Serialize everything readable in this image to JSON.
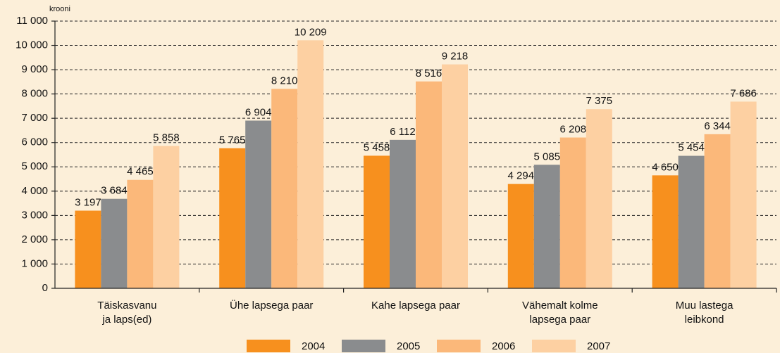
{
  "chart_data": {
    "type": "bar",
    "y_label": "krooni",
    "categories": [
      [
        "Täiskasvanu",
        "ja laps(ed)"
      ],
      [
        "Ühe lapsega paar"
      ],
      [
        "Kahe lapsega paar"
      ],
      [
        "Vähemalt kolme",
        "lapsega paar"
      ],
      [
        "Muu lastega",
        "leibkond"
      ]
    ],
    "series": [
      {
        "name": "2004",
        "color": "#f7901e",
        "values": [
          3197,
          5765,
          5458,
          4294,
          4650
        ],
        "value_labels": [
          "3 197",
          "5 765",
          "5 458",
          "4 294",
          "4 650"
        ]
      },
      {
        "name": "2005",
        "color": "#8a8c8e",
        "values": [
          3684,
          6904,
          6112,
          5085,
          5454
        ],
        "value_labels": [
          "3 684",
          "6 904",
          "6 112",
          "5 085",
          "5 454"
        ]
      },
      {
        "name": "2006",
        "color": "#fbb87a",
        "values": [
          4465,
          8210,
          8516,
          6208,
          6344
        ],
        "value_labels": [
          "4 465",
          "8 210",
          "8 516",
          "6 208",
          "6 344"
        ]
      },
      {
        "name": "2007",
        "color": "#fdd0a2",
        "values": [
          5858,
          10209,
          9218,
          7375,
          7686
        ],
        "value_labels": [
          "5 858",
          "10 209",
          "9 218",
          "7 375",
          "7 686"
        ]
      }
    ],
    "ylim": [
      0,
      11000
    ],
    "yticks": [
      0,
      {
        "value": 1000,
        "label": "1 000"
      },
      {
        "value": 2000,
        "label": "2 000"
      },
      {
        "value": 3000,
        "label": "3 000"
      },
      {
        "value": 4000,
        "label": "4 000"
      },
      {
        "value": 5000,
        "label": "5 000"
      },
      {
        "value": 6000,
        "label": "6 000"
      },
      {
        "value": 7000,
        "label": "7 000"
      },
      {
        "value": 8000,
        "label": "8 000"
      },
      {
        "value": 9000,
        "label": "9 000"
      },
      {
        "value": 10000,
        "label": "10 000"
      },
      {
        "value": 11000,
        "label": "11 000"
      }
    ],
    "grid": true,
    "legend": "bottom"
  }
}
